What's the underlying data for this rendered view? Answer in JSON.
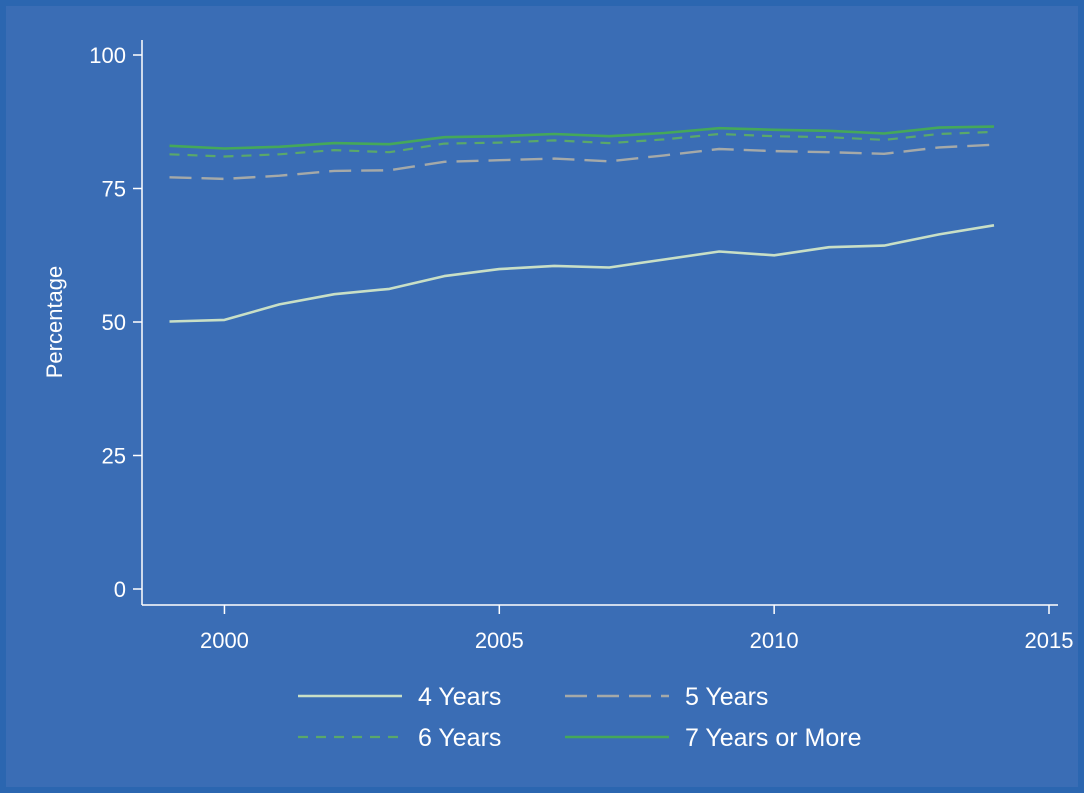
{
  "chart_data": {
    "type": "line",
    "title": "",
    "xlabel": "",
    "ylabel": "Percentage",
    "xlim": [
      1998.5,
      2015
    ],
    "ylim": [
      0,
      100
    ],
    "xticks": [
      2000,
      2005,
      2010,
      2015
    ],
    "yticks": [
      0,
      25,
      50,
      75,
      100
    ],
    "grid": false,
    "legend_position": "bottom",
    "x": [
      1999,
      2000,
      2001,
      2002,
      2003,
      2004,
      2005,
      2006,
      2007,
      2008,
      2009,
      2010,
      2011,
      2012,
      2013,
      2014
    ],
    "series": [
      {
        "name": "4 Years",
        "color": "#c8dfc6",
        "style": "solid",
        "values": [
          50.1,
          50.4,
          53.3,
          55.2,
          56.2,
          58.6,
          59.9,
          60.5,
          60.2,
          61.7,
          63.2,
          62.5,
          64.0,
          64.3,
          66.4,
          68.1
        ]
      },
      {
        "name": "5 Years",
        "color": "#a5a9a8",
        "style": "longdash",
        "values": [
          77.1,
          76.8,
          77.4,
          78.3,
          78.4,
          80.0,
          80.3,
          80.6,
          80.1,
          81.2,
          82.4,
          82.0,
          81.8,
          81.5,
          82.7,
          83.2
        ]
      },
      {
        "name": "6 Years",
        "color": "#5aa86a",
        "style": "dash",
        "values": [
          81.4,
          81.0,
          81.4,
          82.2,
          81.8,
          83.4,
          83.6,
          84.0,
          83.5,
          84.2,
          85.2,
          84.8,
          84.6,
          84.1,
          85.2,
          85.6
        ]
      },
      {
        "name": "7 Years or More",
        "color": "#45a85a",
        "style": "solid",
        "values": [
          83.0,
          82.5,
          82.8,
          83.5,
          83.3,
          84.6,
          84.8,
          85.2,
          84.8,
          85.4,
          86.3,
          86.0,
          85.8,
          85.3,
          86.4,
          86.6
        ]
      }
    ]
  }
}
